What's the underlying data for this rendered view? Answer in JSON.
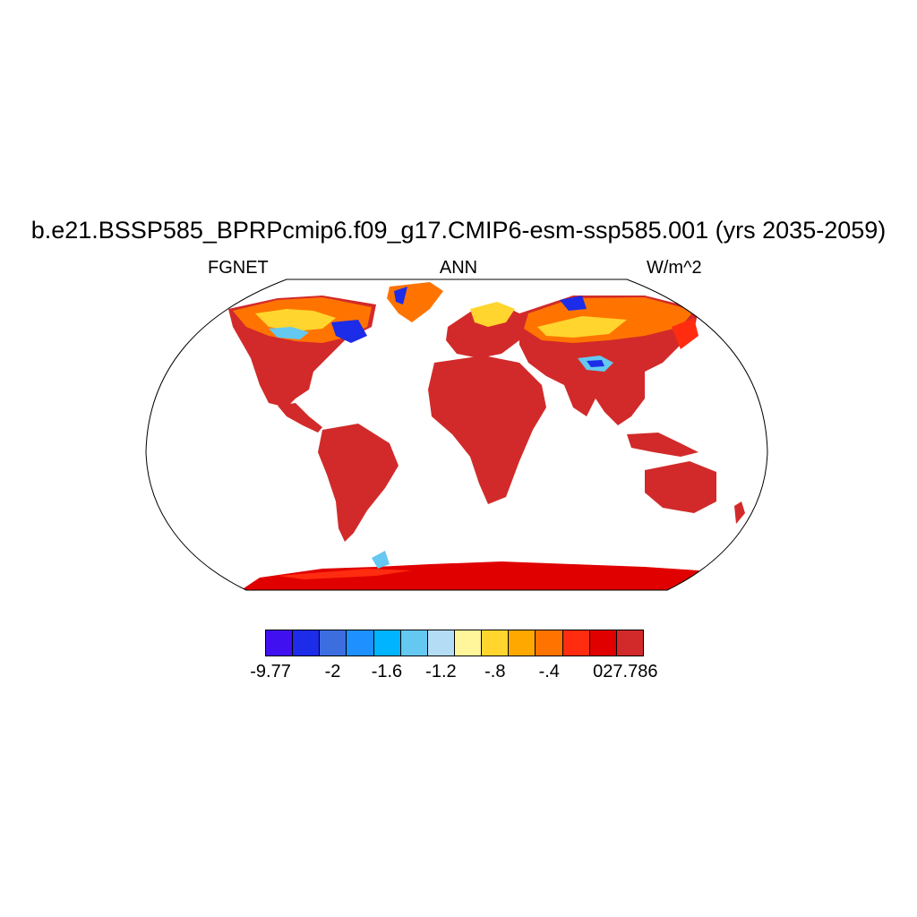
{
  "title": "b.e21.BSSP585_BPRPcmip6.f09_g17.CMIP6-esm-ssp585.001 (yrs 2035-2059)",
  "variable": "FGNET",
  "season": "ANN",
  "units": "W/m^2",
  "colorbar": {
    "colors": [
      "#4010f0",
      "#1c2ce8",
      "#3c6ee0",
      "#1e90ff",
      "#00b4ff",
      "#64c8f0",
      "#b4dcf4",
      "#fff59a",
      "#ffd52e",
      "#ffa800",
      "#ff7400",
      "#ff2c10",
      "#e00000",
      "#d22a2a"
    ],
    "labels": [
      "-9.77",
      "-2",
      "-1.6",
      "-1.2",
      "-.8",
      "-.4",
      "0",
      "27.786"
    ]
  },
  "map": {
    "projection": "robinson",
    "land_base_color": "#d22a2a",
    "antarctica_color": "#e00000",
    "ocean_color": "#ffffff"
  }
}
